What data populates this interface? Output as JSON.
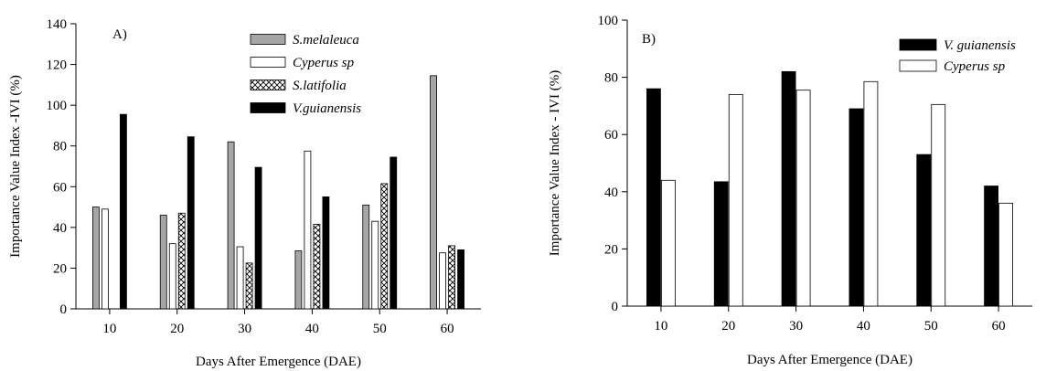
{
  "chart_data": [
    {
      "type": "bar",
      "panel_label": "A)",
      "xlabel": "Days After Emergence (DAE)",
      "ylabel": "Importance Value Index -IVI (%)",
      "ylim": [
        0,
        140
      ],
      "yticks": [
        0,
        20,
        40,
        60,
        80,
        100,
        120,
        140
      ],
      "categories": [
        "10",
        "20",
        "30",
        "40",
        "50",
        "60"
      ],
      "series": [
        {
          "name": "S.melaleuca",
          "fill": "#a6a6a6",
          "pattern": "solid",
          "values": [
            50,
            46,
            82,
            28.5,
            51,
            114.5
          ]
        },
        {
          "name": "Cyperus sp",
          "fill": "#ffffff",
          "pattern": "solid",
          "values": [
            49,
            32,
            30.5,
            77.5,
            43,
            27.5
          ]
        },
        {
          "name": "S.latifolia",
          "fill": "#ffffff",
          "pattern": "crosshatch",
          "values": [
            0,
            47,
            22.5,
            41.5,
            61.5,
            31
          ]
        },
        {
          "name": "V.guianensis",
          "fill": "#000000",
          "pattern": "solid",
          "values": [
            95.5,
            84.5,
            69.5,
            55,
            74.5,
            29
          ]
        }
      ],
      "legend_position": "top-right",
      "grid": false
    },
    {
      "type": "bar",
      "panel_label": "B)",
      "xlabel": "Days After Emergence (DAE)",
      "ylabel": "Importance Value Index - IVI (%)",
      "ylim": [
        0,
        100
      ],
      "yticks": [
        0,
        20,
        40,
        60,
        80,
        100
      ],
      "categories": [
        "10",
        "20",
        "30",
        "40",
        "50",
        "60"
      ],
      "series": [
        {
          "name": "V. guianensis",
          "fill": "#000000",
          "pattern": "solid",
          "values": [
            76,
            43.5,
            82,
            69,
            53,
            42
          ]
        },
        {
          "name": "Cyperus sp",
          "fill": "#ffffff",
          "pattern": "solid",
          "values": [
            44,
            74,
            75.5,
            78.5,
            70.5,
            36
          ]
        }
      ],
      "legend_position": "top-right",
      "grid": false
    }
  ]
}
